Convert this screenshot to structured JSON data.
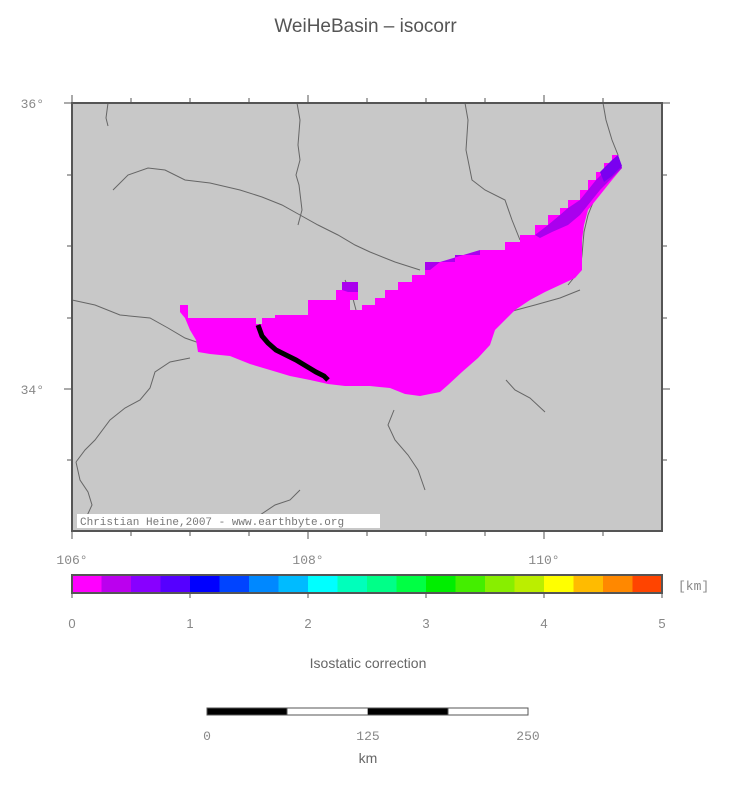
{
  "title": "WeiHeBasin – isocorr",
  "map": {
    "lat_labels": [
      "36°",
      "34°"
    ],
    "lon_labels": [
      "106°",
      "108°",
      "110°"
    ],
    "credit": "Christian Heine,2007 - www.earthbyte.org",
    "background_color": "#c8c8c8",
    "basin_color": "#ff00ff"
  },
  "colorbar": {
    "unit": "[km]",
    "ticks": [
      "0",
      "1",
      "2",
      "3",
      "4",
      "5"
    ],
    "label": "Isostatic correction",
    "colors": [
      "#ff00ff",
      "#bb00ee",
      "#8800ff",
      "#5500ff",
      "#0000ff",
      "#0044ff",
      "#0088ff",
      "#00bbff",
      "#00ffff",
      "#00ffbb",
      "#00ff88",
      "#00ff44",
      "#00ee00",
      "#44ee00",
      "#88ee00",
      "#bbee00",
      "#ffff00",
      "#ffbb00",
      "#ff8800",
      "#ff4400"
    ]
  },
  "scalebar": {
    "ticks": [
      "0",
      "125",
      "250"
    ],
    "unit": "km"
  }
}
